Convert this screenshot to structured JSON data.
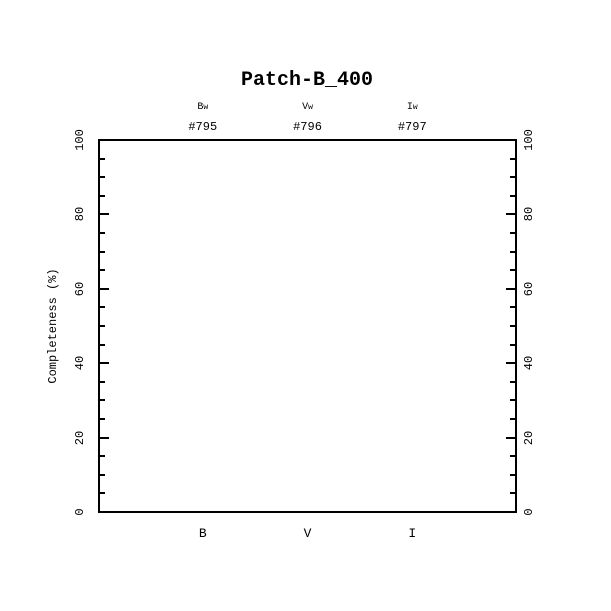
{
  "page": {
    "background_color": "#ffffff",
    "foreground_color": "#000000"
  },
  "chart_data": {
    "type": "line",
    "title": "Patch-B_400",
    "ylabel": "Completeness (%)",
    "xlabel": "",
    "ylim": [
      0,
      100
    ],
    "y_major_ticks": [
      0,
      20,
      40,
      60,
      80,
      100
    ],
    "y_minor_tick_step": 5,
    "grid": false,
    "frame": "box",
    "legend": "none",
    "series": [],
    "top_columns": [
      {
        "filter_base": "B",
        "filter_sub": "w",
        "id": "#795",
        "x_frac": 0.25
      },
      {
        "filter_base": "V",
        "filter_sub": "w",
        "id": "#796",
        "x_frac": 0.5
      },
      {
        "filter_base": "I",
        "filter_sub": "w",
        "id": "#797",
        "x_frac": 0.75
      }
    ],
    "x_category_labels": [
      "B",
      "V",
      "I"
    ]
  }
}
